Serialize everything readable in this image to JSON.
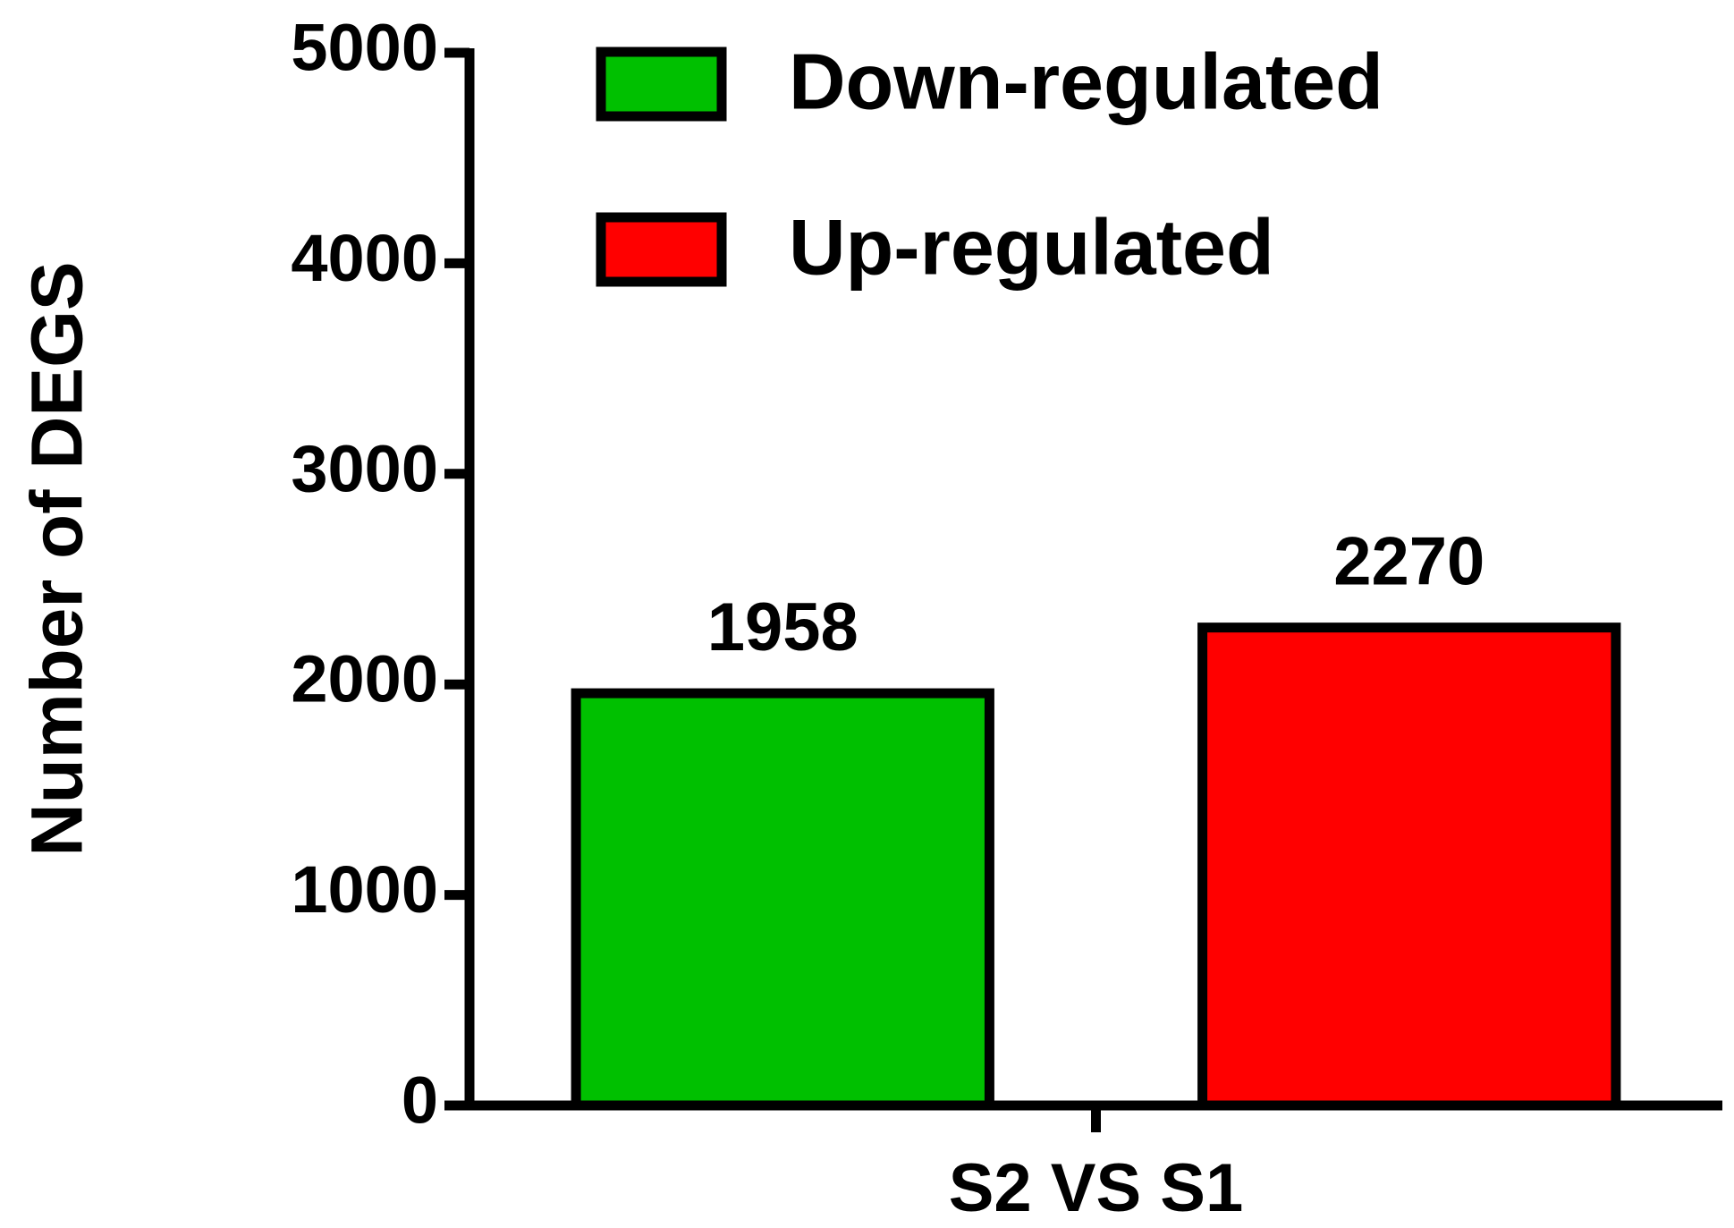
{
  "chart_data": {
    "type": "bar",
    "y_label": "Number of DEGS",
    "categories": [
      "S2 VS S1"
    ],
    "series": [
      {
        "name": "Down-regulated",
        "color": "#00c000",
        "values": [
          1958
        ]
      },
      {
        "name": "Up-regulated",
        "color": "#ff0000",
        "values": [
          2270
        ]
      }
    ],
    "ylim": [
      0,
      5000
    ],
    "yticks": [
      0,
      1000,
      2000,
      3000,
      4000,
      5000
    ],
    "legend": "top"
  }
}
